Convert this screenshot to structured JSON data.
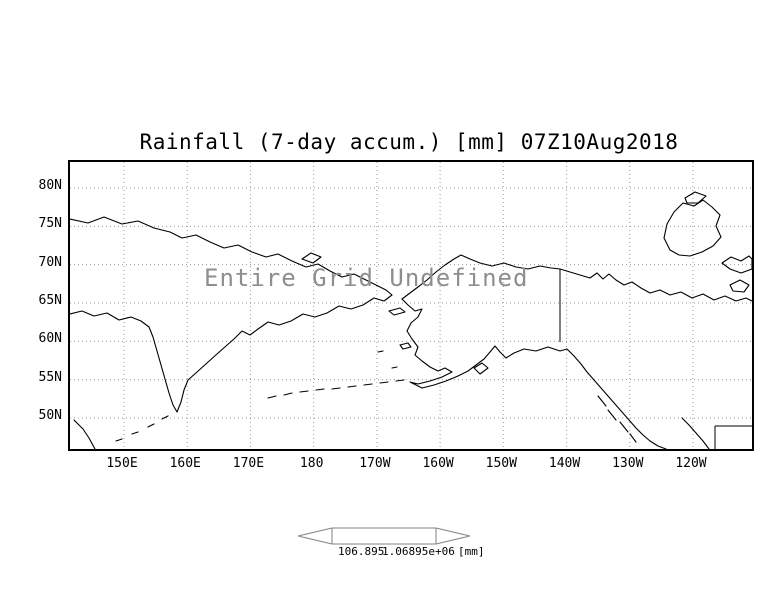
{
  "title": "Rainfall (7-day accum.) [mm] 07Z10Aug2018",
  "overlay_message": "Entire Grid Undefined",
  "axes": {
    "lat_ticks": [
      "80N",
      "75N",
      "70N",
      "65N",
      "60N",
      "55N",
      "50N"
    ],
    "lon_ticks": [
      "150E",
      "160E",
      "170E",
      "180",
      "170W",
      "160W",
      "150W",
      "140W",
      "130W",
      "120W"
    ]
  },
  "colorbar": {
    "label_min": "106.895",
    "label_max": "1.06895e+06",
    "units": "[mm]"
  },
  "colors": {
    "coastline": "#000000",
    "gridline": "#9a9a9a",
    "frame": "#000000",
    "undefined_text": "#8e8e8e",
    "colorbar_outline": "#808080"
  },
  "chart_data": {
    "type": "map",
    "title": "Rainfall (7-day accum.) [mm] 07Z10Aug2018",
    "x_axis": {
      "label": "longitude",
      "ticks": [
        "150E",
        "160E",
        "170E",
        "180",
        "170W",
        "160W",
        "150W",
        "140W",
        "130W",
        "120W"
      ]
    },
    "y_axis": {
      "label": "latitude",
      "ticks": [
        "80N",
        "75N",
        "70N",
        "65N",
        "60N",
        "55N",
        "50N"
      ]
    },
    "grid": "dotted",
    "series": [],
    "data_status": "Entire Grid Undefined",
    "colorbar": {
      "labels": [
        "106.895",
        "1.06895e+06"
      ],
      "units": "[mm]"
    }
  }
}
